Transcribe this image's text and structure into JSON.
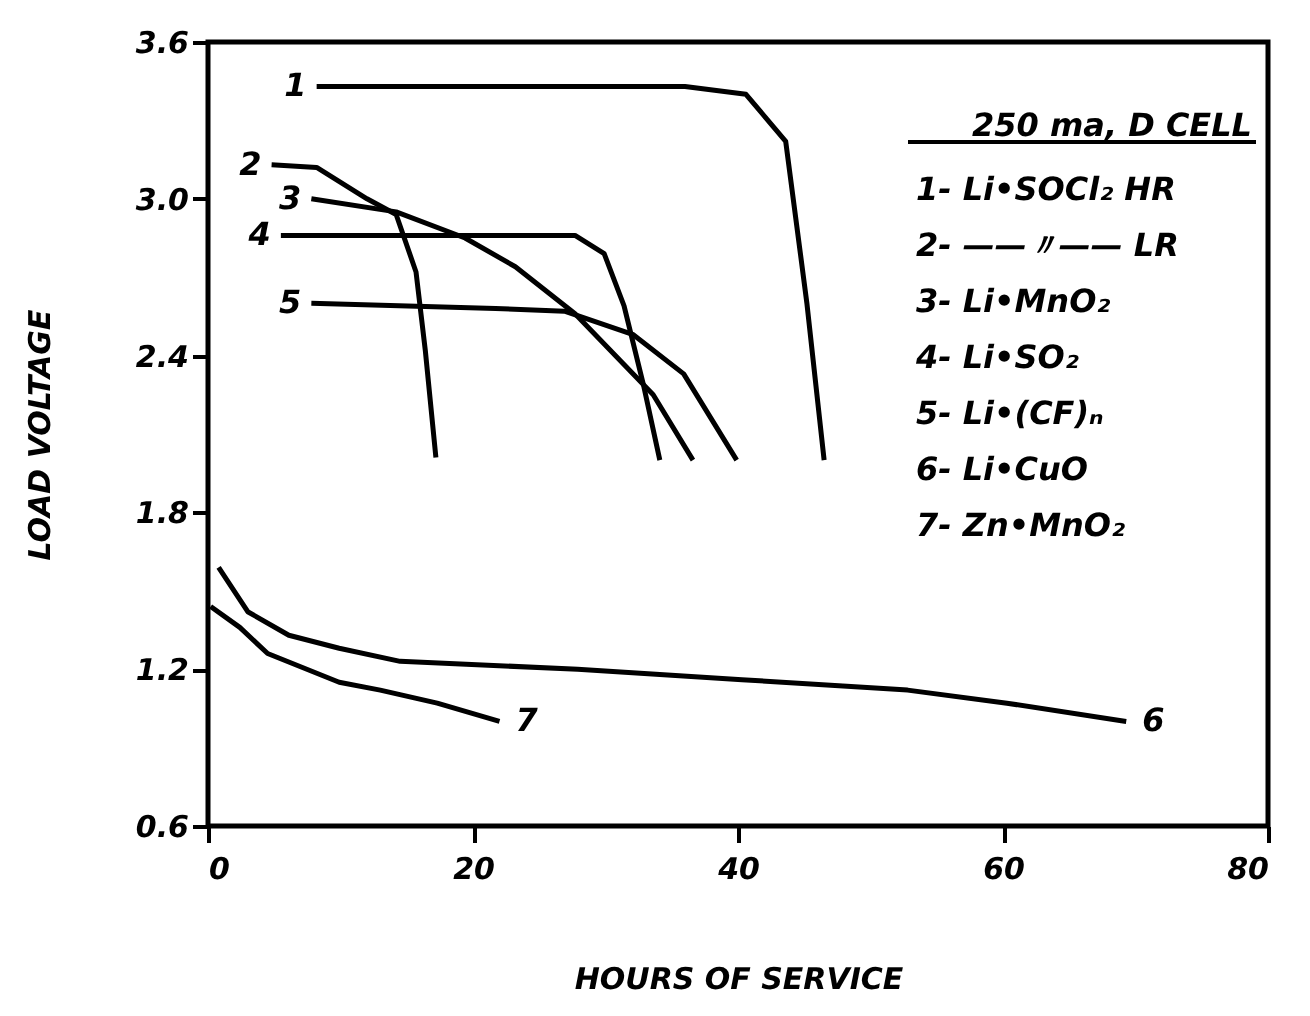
{
  "chart_data": {
    "type": "line",
    "xlabel": "HOURS OF SERVICE",
    "ylabel": "LOAD VOLTAGE",
    "xlim": [
      0,
      80
    ],
    "ylim": [
      0.6,
      3.6
    ],
    "xticks": [
      0,
      20,
      40,
      60,
      80
    ],
    "yticks": [
      0.6,
      1.2,
      1.8,
      2.4,
      {
        "value": 3.0,
        "label": "3.0"
      },
      3.6
    ],
    "grid": false,
    "marker": "none",
    "line_style": "solid",
    "legend_title": "250 ma, D CELL",
    "annotations": [
      "1- Li•SOCl₂  HR",
      "2- ——〃——  LR",
      "3- Li•MnO₂",
      "4- Li•SO₂",
      "5- Li•(CF)ₙ",
      "6- Li•CuO",
      "7- Zn•MnO₂"
    ],
    "series": [
      {
        "name": "1",
        "color": "#000000",
        "x": [
          8.2,
          20,
          36,
          40.6,
          43.6,
          45.2,
          46.5
        ],
        "values": [
          3.43,
          3.43,
          3.43,
          3.4,
          3.22,
          2.6,
          2.0
        ]
      },
      {
        "name": "2",
        "color": "#000000",
        "x": [
          4.8,
          8.2,
          12,
          14.2,
          15.7,
          16.4,
          17.2
        ],
        "values": [
          3.13,
          3.12,
          3.0,
          2.94,
          2.72,
          2.42,
          2.01
        ]
      },
      {
        "name": "3",
        "color": "#000000",
        "x": [
          7.8,
          14.2,
          19.4,
          23.2,
          27.7,
          33.6,
          36.6
        ],
        "values": [
          3.0,
          2.95,
          2.85,
          2.74,
          2.56,
          2.25,
          2.0
        ]
      },
      {
        "name": "4",
        "color": "#000000",
        "x": [
          5.5,
          27.7,
          29.9,
          31.4,
          32.9,
          34.1
        ],
        "values": [
          2.86,
          2.86,
          2.79,
          2.59,
          2.28,
          2.0
        ]
      },
      {
        "name": "5",
        "color": "#000000",
        "x": [
          7.8,
          21.7,
          26.9,
          32.1,
          35.9,
          39.9
        ],
        "values": [
          2.6,
          2.58,
          2.57,
          2.48,
          2.33,
          2.0
        ]
      },
      {
        "name": "6",
        "color": "#000000",
        "x": [
          0.8,
          3.0,
          6.1,
          9.9,
          14.5,
          27.9,
          40.3,
          52.8,
          60.3,
          69.3
        ],
        "values": [
          1.59,
          1.42,
          1.33,
          1.28,
          1.23,
          1.2,
          1.16,
          1.12,
          1.07,
          1.0
        ]
      },
      {
        "name": "7",
        "color": "#000000",
        "x": [
          0.2,
          2.4,
          4.5,
          9.9,
          13,
          17.3,
          22
        ],
        "values": [
          1.44,
          1.36,
          1.26,
          1.15,
          1.12,
          1.07,
          1.0
        ]
      }
    ]
  }
}
